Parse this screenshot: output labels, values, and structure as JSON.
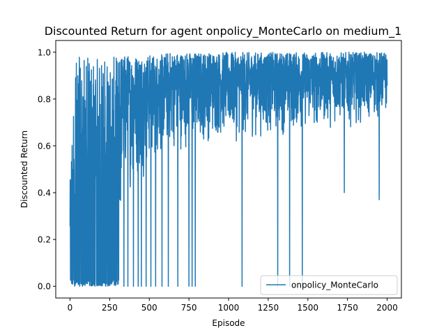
{
  "chart_data": {
    "type": "line",
    "title": "Discounted Return for agent onpolicy_MonteCarlo on medium_1",
    "xlabel": "Episode",
    "ylabel": "Discounted Return",
    "xlim": [
      -90,
      2090
    ],
    "ylim": [
      -0.05,
      1.05
    ],
    "xticks": [
      0,
      250,
      500,
      750,
      1000,
      1250,
      1500,
      1750,
      2000
    ],
    "xtick_labels": [
      "0",
      "250",
      "500",
      "750",
      "1000",
      "1250",
      "1500",
      "1750",
      "2000"
    ],
    "yticks": [
      0.0,
      0.2,
      0.4,
      0.6,
      0.8,
      1.0
    ],
    "ytick_labels": [
      "0.0",
      "0.2",
      "0.4",
      "0.6",
      "0.8",
      "1.0"
    ],
    "grid": false,
    "legend_position": "bottom-right",
    "episodes": 2000,
    "series": [
      {
        "name": "onpolicy_MonteCarlo",
        "color": "#1f77b4",
        "phases": [
          {
            "x": [
              0,
              30
            ],
            "upper": [
              0.44,
              0.93
            ],
            "lower": [
              0.0,
              0.0
            ]
          },
          {
            "x": [
              30,
              310
            ],
            "upper": [
              0.98,
              0.98
            ],
            "lower": [
              0.0,
              0.0
            ]
          },
          {
            "x": [
              310,
              600
            ],
            "upper": [
              0.99,
              0.99
            ],
            "lower": [
              0.35,
              0.55
            ]
          },
          {
            "x": [
              600,
              1000
            ],
            "upper": [
              1.0,
              1.0
            ],
            "lower": [
              0.55,
              0.62
            ]
          },
          {
            "x": [
              1000,
              2000
            ],
            "upper": [
              1.0,
              1.0
            ],
            "lower": [
              0.6,
              0.7
            ]
          }
        ],
        "notable_dips": [
          {
            "x": 340,
            "y": 0.0
          },
          {
            "x": 365,
            "y": 0.0
          },
          {
            "x": 400,
            "y": 0.0
          },
          {
            "x": 430,
            "y": 0.0
          },
          {
            "x": 450,
            "y": 0.0
          },
          {
            "x": 480,
            "y": 0.0
          },
          {
            "x": 510,
            "y": 0.0
          },
          {
            "x": 540,
            "y": 0.0
          },
          {
            "x": 580,
            "y": 0.0
          },
          {
            "x": 620,
            "y": 0.0
          },
          {
            "x": 680,
            "y": 0.0
          },
          {
            "x": 750,
            "y": 0.0
          },
          {
            "x": 770,
            "y": 0.0
          },
          {
            "x": 790,
            "y": 0.0
          },
          {
            "x": 1085,
            "y": 0.0
          },
          {
            "x": 1310,
            "y": 0.0
          },
          {
            "x": 1385,
            "y": 0.0
          },
          {
            "x": 1465,
            "y": 0.0
          },
          {
            "x": 1950,
            "y": 0.37
          },
          {
            "x": 1730,
            "y": 0.4
          }
        ]
      }
    ]
  }
}
